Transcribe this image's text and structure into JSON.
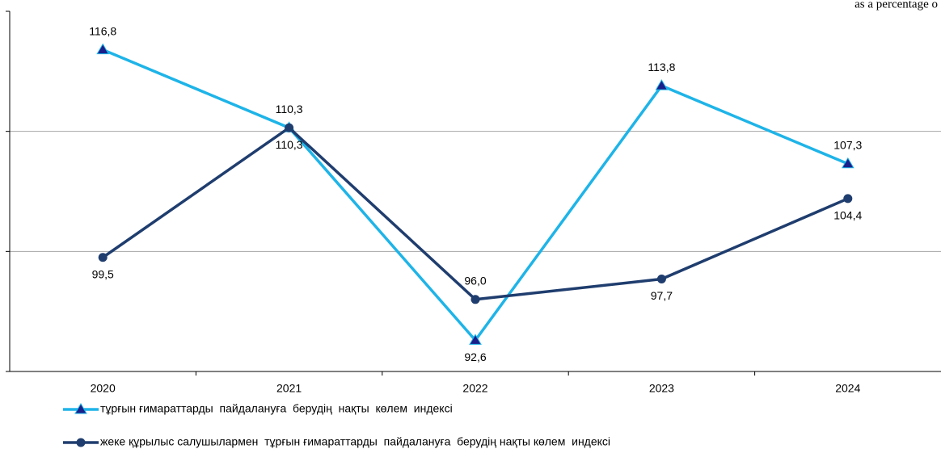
{
  "chart_data": {
    "type": "line",
    "subtitle": "as a percentage o",
    "categories": [
      "2020",
      "2021",
      "2022",
      "2023",
      "2024"
    ],
    "ylim": [
      90,
      120
    ],
    "yticks": [
      90,
      100,
      110,
      120
    ],
    "grid": true,
    "series": [
      {
        "name": "тұрғын ғимараттарды  пайдалануға  берудің  нақты  көлем  индексі",
        "color": "#1eb4e8",
        "marker": "triangle",
        "values": [
          116.8,
          110.3,
          92.6,
          113.8,
          107.3
        ],
        "value_labels": [
          "116,8",
          "110,3",
          "92,6",
          "113,8",
          "107,3"
        ]
      },
      {
        "name": "жеке құрылыс салушылармен  тұрғын ғимараттарды  пайдалануға  берудің нақты көлем  индексі",
        "color": "#1f3d6e",
        "marker": "circle",
        "values": [
          99.5,
          110.3,
          96.0,
          97.7,
          104.4
        ],
        "value_labels": [
          "99,5",
          "110,3",
          "96,0",
          "97,7",
          "104,4"
        ]
      }
    ]
  }
}
